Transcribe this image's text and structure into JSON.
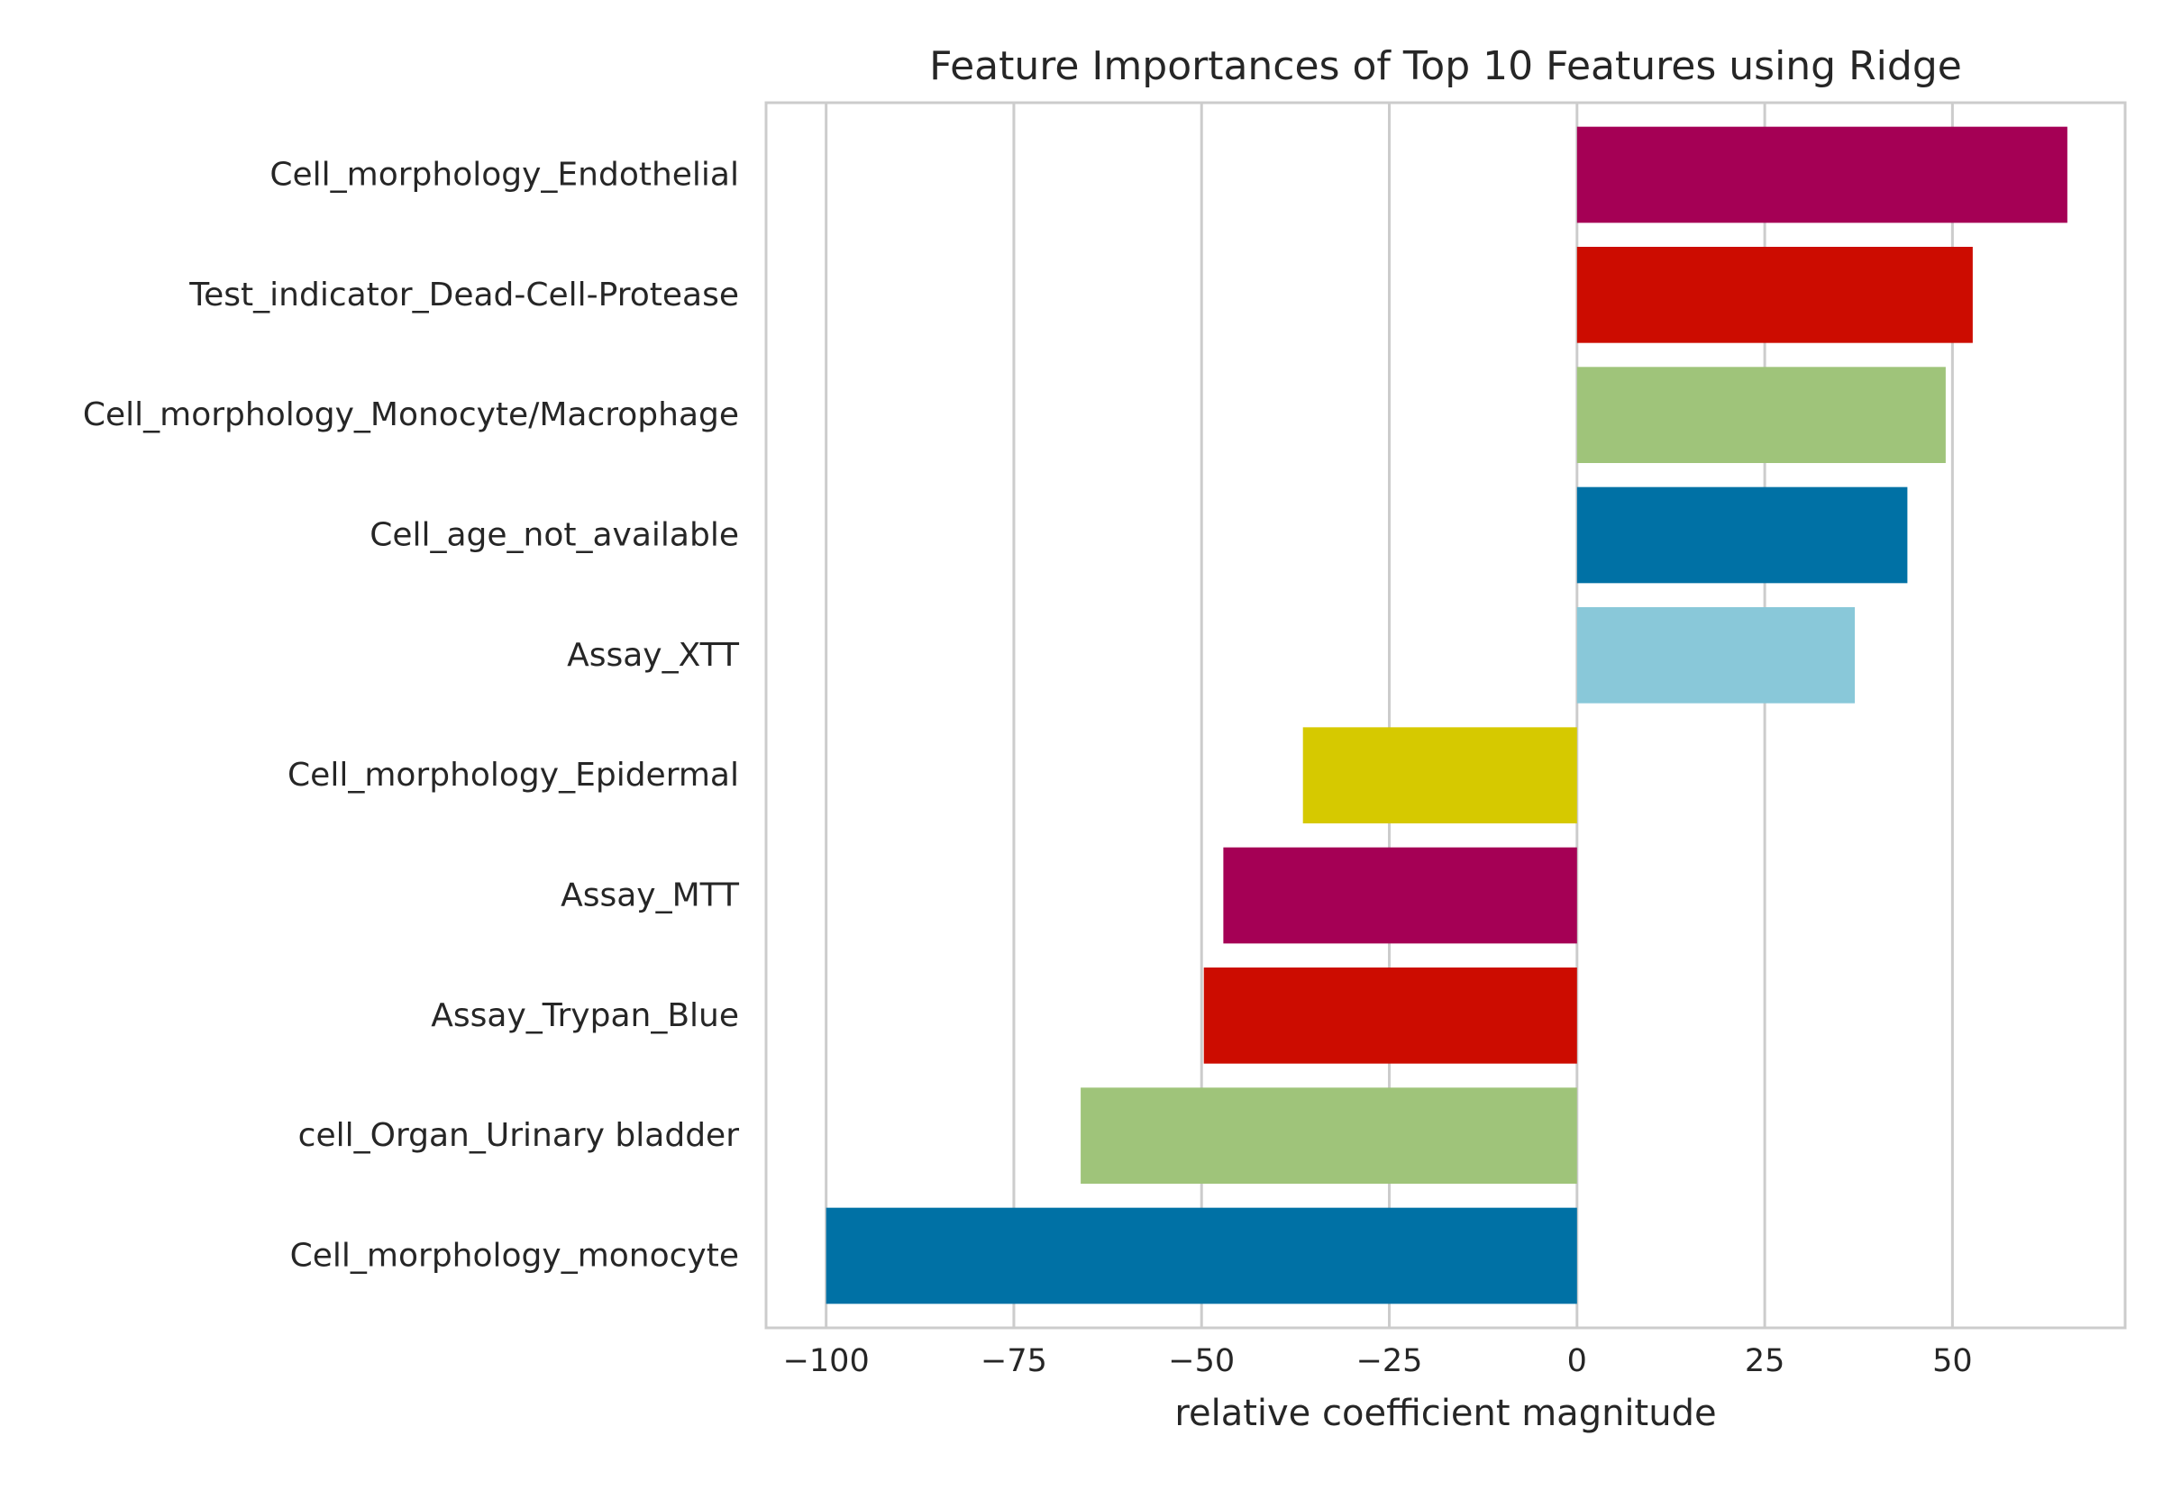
{
  "chart_data": {
    "type": "bar",
    "orientation": "horizontal",
    "title": "Feature Importances of Top 10 Features using Ridge",
    "xlabel": "relative coefficient magnitude",
    "ylabel": "",
    "xlim": [
      -108,
      73
    ],
    "xticks": [
      -100,
      -75,
      -50,
      -25,
      0,
      25,
      50
    ],
    "xtick_labels": [
      "−100",
      "−75",
      "−50",
      "−25",
      "0",
      "25",
      "50"
    ],
    "grid": true,
    "categories": [
      "Cell_morphology_Endothelial",
      "Test_indicator_Dead-Cell-Protease",
      "Cell_morphology_Monocyte/Macrophage",
      "Cell_age_not_available",
      "Assay_XTT",
      "Cell_morphology_Epidermal",
      "Assay_MTT",
      "Assay_Trypan_Blue",
      "cell_Organ_Urinary bladder",
      "Cell_morphology_monocyte"
    ],
    "values": [
      65.3,
      52.7,
      49.1,
      44.0,
      37.0,
      -36.5,
      -47.1,
      -49.7,
      -66.1,
      -100.0
    ],
    "colors": [
      "#a50055",
      "#cc0c00",
      "#9fc47a",
      "#0071a5",
      "#89c8d9",
      "#d6c900",
      "#a50055",
      "#cc0c00",
      "#9fc47a",
      "#0071a5"
    ]
  }
}
